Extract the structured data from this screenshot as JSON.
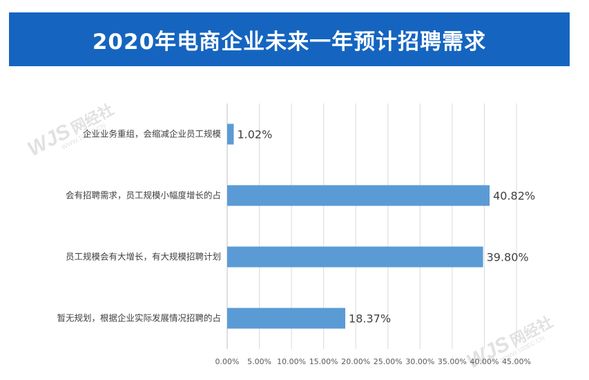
{
  "title": "2020年电商企业未来一年预计招聘需求",
  "watermark": {
    "logo": "WJS",
    "name": "网经社",
    "url": "WWW.100EC.CN"
  },
  "chart_data": {
    "type": "bar",
    "orientation": "horizontal",
    "categories": [
      "企业业务重组，会缩减企业员工规模",
      "会有招聘需求，员工规模小幅度增长的占",
      "员工规模会有大增长，有大规模招聘计划",
      "暂无规划，根据企业实际发展情况招聘的占"
    ],
    "values": [
      1.02,
      40.82,
      39.8,
      18.37
    ],
    "value_labels": [
      "1.02%",
      "40.82%",
      "39.80%",
      "18.37%"
    ],
    "xlim": [
      0,
      45
    ],
    "x_ticks": [
      0,
      5,
      10,
      15,
      20,
      25,
      30,
      35,
      40,
      45
    ],
    "x_tick_labels": [
      "0.00%",
      "5.00%",
      "10.00%",
      "15.00%",
      "20.00%",
      "25.00%",
      "30.00%",
      "35.00%",
      "40.00%",
      "45.00%"
    ],
    "grid": true,
    "bar_color": "#5b9bd5",
    "title_bar_color": "#1565c0"
  }
}
